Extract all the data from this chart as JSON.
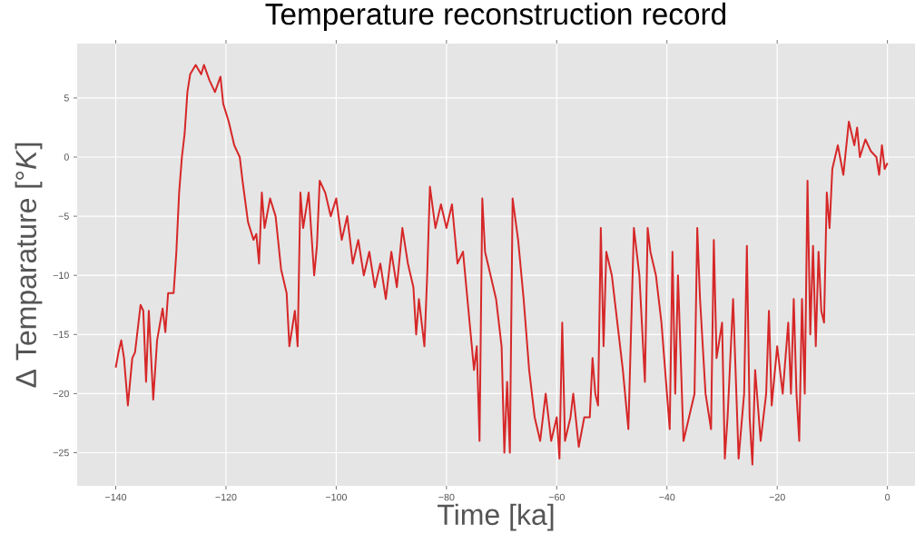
{
  "chart_data": {
    "type": "line",
    "title": "Temperature reconstruction record",
    "xlabel": "Time [ka]",
    "ylabel": "Δ Temparature [°*K*]",
    "color": "#d62728",
    "grid": true,
    "xlim": [
      -147,
      5
    ],
    "ylim": [
      -27.8,
      9.6
    ],
    "xticks": [
      {
        "value": -140,
        "label": "−140"
      },
      {
        "value": -120,
        "label": "−120"
      },
      {
        "value": -100,
        "label": "−100"
      },
      {
        "value": -80,
        "label": "−80"
      },
      {
        "value": -60,
        "label": "−60"
      },
      {
        "value": -40,
        "label": "−40"
      },
      {
        "value": -20,
        "label": "−20"
      },
      0
    ],
    "yticks": [
      {
        "value": -25,
        "label": "−25"
      },
      {
        "value": -20,
        "label": "−20"
      },
      {
        "value": -15,
        "label": "−15"
      },
      {
        "value": -10,
        "label": "−10"
      },
      {
        "value": -5,
        "label": "−5"
      },
      0,
      5
    ],
    "x": [
      -140,
      -139.5,
      -139,
      -138.5,
      -137.8,
      -137,
      -136.5,
      -135.5,
      -135,
      -134.5,
      -134,
      -133.2,
      -132.5,
      -131.5,
      -131,
      -130.5,
      -129.5,
      -129,
      -128.5,
      -128,
      -127.5,
      -127,
      -126.5,
      -125.5,
      -124.5,
      -124,
      -123,
      -122,
      -121,
      -120.5,
      -119.5,
      -118.5,
      -117.5,
      -117,
      -116,
      -115,
      -114.5,
      -114,
      -113.5,
      -113,
      -112,
      -111,
      -110,
      -109,
      -108.5,
      -107.5,
      -107,
      -106.5,
      -106,
      -105,
      -104,
      -103.5,
      -103,
      -102,
      -101,
      -100,
      -99,
      -98,
      -97,
      -96,
      -95,
      -94,
      -93,
      -92,
      -91,
      -90,
      -89,
      -88,
      -87,
      -86,
      -85.5,
      -85,
      -84,
      -83.5,
      -83,
      -82,
      -81,
      -80,
      -79,
      -78,
      -77,
      -76,
      -75,
      -74.5,
      -74,
      -73.5,
      -73,
      -72,
      -71,
      -70,
      -69.5,
      -69,
      -68.5,
      -68,
      -67,
      -66,
      -65,
      -64,
      -63,
      -62,
      -61,
      -60,
      -59.5,
      -59,
      -58.5,
      -57.5,
      -57,
      -56,
      -55,
      -54,
      -53.5,
      -53,
      -52.5,
      -52,
      -51.5,
      -51,
      -50,
      -49,
      -48,
      -47,
      -46,
      -45,
      -44,
      -43.5,
      -43,
      -42,
      -41,
      -40,
      -39.5,
      -39,
      -38.5,
      -38,
      -37,
      -36,
      -35,
      -34.5,
      -34,
      -33,
      -32,
      -31.5,
      -31,
      -30,
      -29.5,
      -29,
      -28,
      -27,
      -26,
      -25.5,
      -25,
      -24.5,
      -24,
      -23,
      -22,
      -21.5,
      -21,
      -20,
      -19,
      -18,
      -17.5,
      -17,
      -16.5,
      -16,
      -15.5,
      -15,
      -14.5,
      -14,
      -13.5,
      -13,
      -12.5,
      -12,
      -11.5,
      -11,
      -10.5,
      -10,
      -9,
      -8,
      -7,
      -6,
      -5.5,
      -5,
      -4,
      -3,
      -2,
      -1.5,
      -1,
      -0.5,
      0
    ],
    "values": [
      -17.8,
      -16.5,
      -15.5,
      -17,
      -21,
      -17,
      -16.5,
      -12.5,
      -13,
      -19,
      -13,
      -20.5,
      -15.5,
      -12.8,
      -14.8,
      -11.5,
      -11.5,
      -8,
      -3,
      0,
      2,
      5.5,
      7,
      7.8,
      7,
      7.8,
      6.5,
      5.5,
      6.8,
      4.5,
      3,
      1,
      0,
      -2,
      -5.5,
      -7,
      -6.5,
      -9,
      -3,
      -6,
      -3.5,
      -5,
      -9.5,
      -11.5,
      -16,
      -13,
      -16,
      -3,
      -6,
      -3,
      -10,
      -7.5,
      -2,
      -3,
      -5,
      -3.5,
      -7,
      -5,
      -9,
      -7,
      -10,
      -8,
      -11,
      -9,
      -12,
      -8,
      -11,
      -6,
      -9,
      -11,
      -15,
      -12,
      -16,
      -10,
      -2.5,
      -6,
      -4,
      -6,
      -4,
      -9,
      -8,
      -13,
      -18,
      -16,
      -24,
      -3.5,
      -8,
      -10,
      -12,
      -16,
      -25,
      -19,
      -25,
      -3.5,
      -7,
      -12,
      -18,
      -22,
      -24,
      -20,
      -24,
      -22,
      -25.5,
      -14,
      -24,
      -22,
      -20,
      -24.5,
      -22,
      -22,
      -17,
      -20,
      -21,
      -6,
      -16,
      -8,
      -10,
      -14,
      -18,
      -23,
      -6,
      -10,
      -19,
      -6,
      -8,
      -10,
      -14,
      -20,
      -23,
      -8,
      -20,
      -10,
      -24,
      -22,
      -20,
      -6,
      -12,
      -20,
      -23,
      -7,
      -17,
      -14,
      -25.5,
      -22,
      -12,
      -25.5,
      -20,
      -7.5,
      -22,
      -26,
      -18,
      -24,
      -20,
      -13,
      -21,
      -16,
      -20,
      -14,
      -20,
      -12,
      -20,
      -24,
      -12,
      -20,
      -2,
      -15,
      -7.5,
      -16,
      -8,
      -13,
      -14,
      -3,
      -6,
      -1,
      1,
      -1.5,
      3,
      1,
      2.5,
      0,
      1.5,
      0.5,
      0,
      -1.5,
      1,
      -1,
      -0.5
    ]
  }
}
